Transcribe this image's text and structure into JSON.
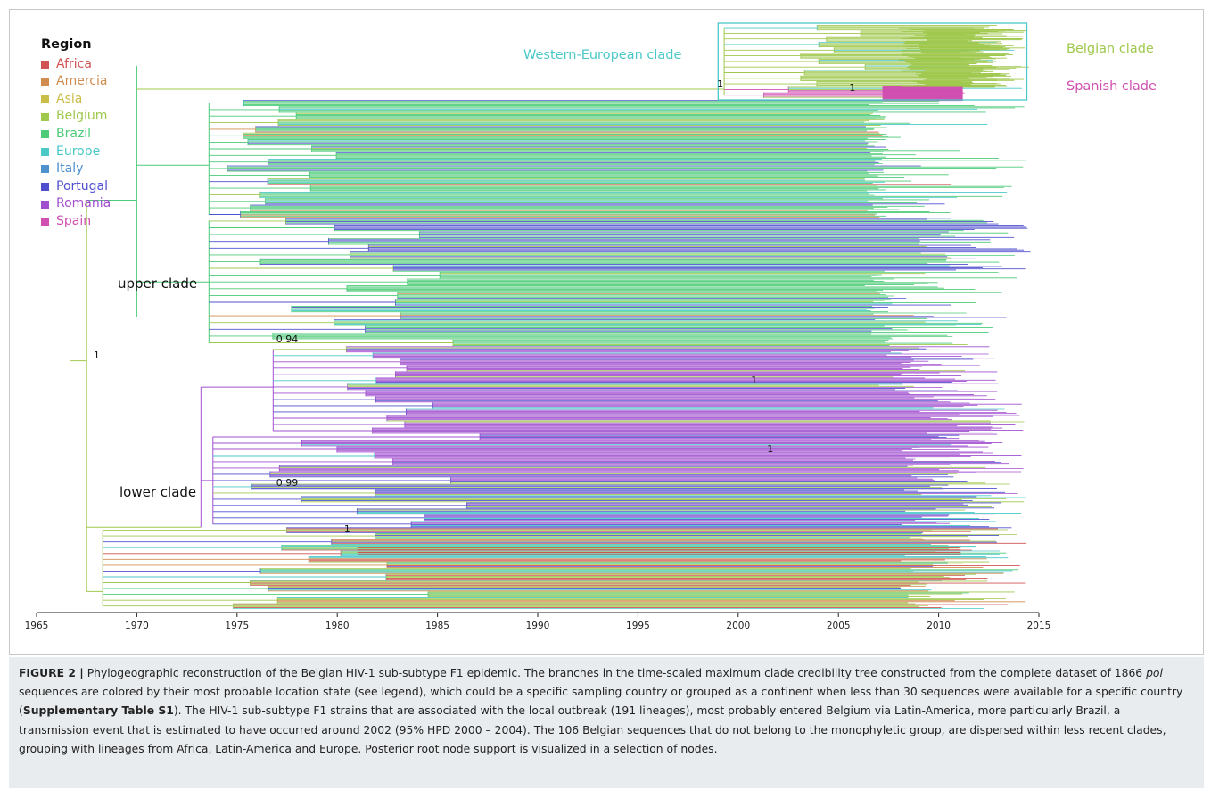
{
  "legend": {
    "title": "Region",
    "items": [
      {
        "label": "Africa",
        "color": "#d05353"
      },
      {
        "label": "Amercia",
        "color": "#d08c4f"
      },
      {
        "label": "Asia",
        "color": "#c9bd48"
      },
      {
        "label": "Belgium",
        "color": "#9fc84d"
      },
      {
        "label": "Brazil",
        "color": "#4ccb78"
      },
      {
        "label": "Europe",
        "color": "#4cc8c8"
      },
      {
        "label": "Italy",
        "color": "#4f90cf"
      },
      {
        "label": "Portugal",
        "color": "#5050cf"
      },
      {
        "label": "Romania",
        "color": "#a04fcf"
      },
      {
        "label": "Spain",
        "color": "#d04fb0"
      }
    ]
  },
  "annotations": {
    "western_european_clade": "Western-European clade",
    "belgian_clade": "Belgian clade",
    "spanish_clade": "Spanish clade",
    "upper_clade": "upper clade",
    "lower_clade": "lower clade"
  },
  "node_supports": [
    {
      "label": "1",
      "year": 1968.2,
      "row": 0.575
    },
    {
      "label": "1",
      "year": 1999.3,
      "row": 0.112
    },
    {
      "label": "1",
      "year": 2005.9,
      "row": 0.118
    },
    {
      "label": "0.94",
      "year": 1978.2,
      "row": 0.548
    },
    {
      "label": "1",
      "year": 2001.0,
      "row": 0.619
    },
    {
      "label": "1",
      "year": 2001.8,
      "row": 0.736
    },
    {
      "label": "0.99",
      "year": 1978.2,
      "row": 0.794
    },
    {
      "label": "1",
      "year": 1980.7,
      "row": 0.873
    }
  ],
  "chart_data": {
    "type": "phylogenetic-tree",
    "title": "",
    "xlabel": "",
    "ylabel": "",
    "xlim": [
      1965,
      2015
    ],
    "x_ticks": [
      1965,
      1970,
      1975,
      1980,
      1985,
      1990,
      1995,
      2000,
      2005,
      2010,
      2015
    ],
    "root_year": 1967.5,
    "clades": [
      {
        "name": "upper clade",
        "node_year": 1968.5
      },
      {
        "name": "lower clade",
        "node_year": 1968.5
      },
      {
        "name": "Western-European clade",
        "node_year": 1999.3
      },
      {
        "name": "Belgian clade",
        "node_year": 2001.3
      },
      {
        "name": "Spanish clade",
        "node_year": 2006.5
      }
    ]
  },
  "caption": {
    "label": "FIGURE 2 |",
    "s1": " Phylogeographic reconstruction of the Belgian HIV-1 sub-subtype F1 epidemic. The branches in the time-scaled maximum clade credibility tree constructed from the complete dataset of 1866 ",
    "italic": "pol",
    "s2": " sequences are colored by their most probable location state (see legend), which could be a specific sampling country or grouped as a continent when less than 30 sequences were available for a specific country (",
    "bold": "Supplementary Table S1",
    "s3": "). The HIV-1 sub-subtype F1 strains that are associated with the local outbreak (191 lineages), most probably entered Belgium via Latin-America, more particularly Brazil, a transmission event that is estimated to have occurred around 2002 (95% HPD 2000 – 2004). The 106 Belgian sequences that do not belong to the monophyletic group, are dispersed within less recent clades, grouping with lineages from Africa, Latin-America and Europe. Posterior root node support is visualized in a selection of nodes."
  }
}
